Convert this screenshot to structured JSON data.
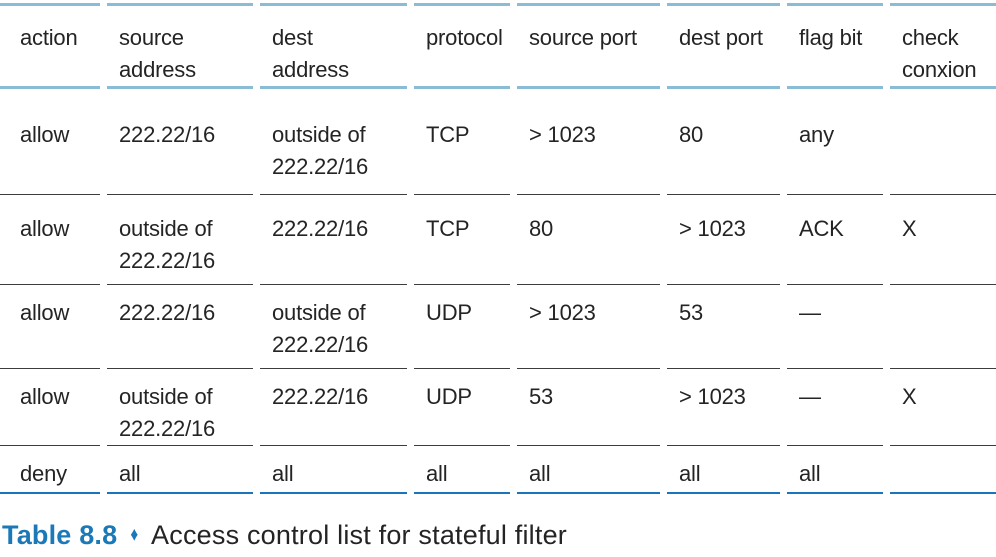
{
  "colors": {
    "rule_light": "#8abcd6",
    "rule_dark": "#3d3d3d",
    "rule_bottom": "#1b75bc",
    "text_color": "#242424",
    "caption_blue": "#1b79b8"
  },
  "table": {
    "headers": [
      "action",
      "source\naddress",
      "dest\naddress",
      "protocol",
      "source port",
      "dest port",
      "flag bit",
      "check\nconxion"
    ],
    "rows": [
      {
        "cells": [
          "allow",
          "222.22/16",
          "outside of\n222.22/16",
          "TCP",
          "> 1023",
          "80",
          "any",
          ""
        ]
      },
      {
        "cells": [
          "allow",
          "outside of\n222.22/16",
          "222.22/16",
          "TCP",
          "80",
          "> 1023",
          "ACK",
          "X"
        ]
      },
      {
        "cells": [
          "allow",
          "222.22/16",
          "outside of\n222.22/16",
          "UDP",
          "> 1023",
          "53",
          "—",
          ""
        ]
      },
      {
        "cells": [
          "allow",
          "outside of\n222.22/16",
          "222.22/16",
          "UDP",
          "53",
          "> 1023",
          "—",
          "X"
        ]
      },
      {
        "cells": [
          "deny",
          "all",
          "all",
          "all",
          "all",
          "all",
          "all",
          ""
        ]
      }
    ]
  },
  "caption": {
    "label": "Table 8.8",
    "separator": "♦",
    "text": "Access control list for stateful filter"
  }
}
